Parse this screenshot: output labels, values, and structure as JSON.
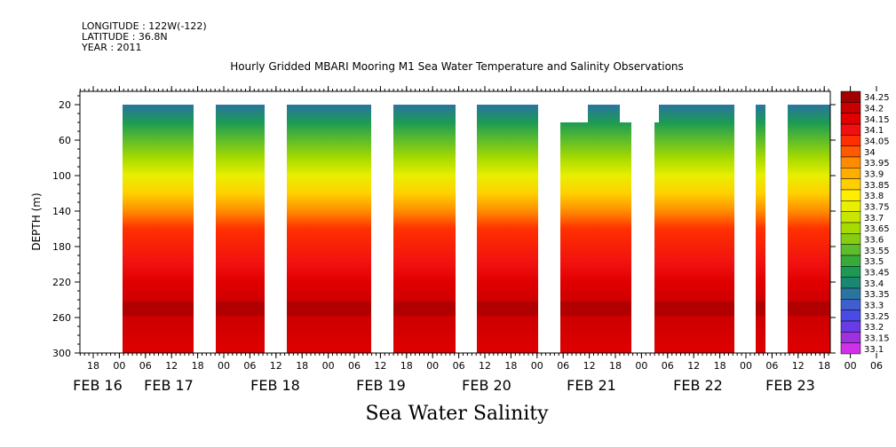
{
  "header": {
    "longitude": "LONGITUDE : 122W(-122)",
    "latitude": "LATITUDE : 36.8N",
    "year": "YEAR : 2011",
    "title": "Hourly Gridded MBARI Mooring M1 Sea Water Temperature and Salinity Observations"
  },
  "chart_data": {
    "type": "heatmap",
    "title": "Hourly Gridded MBARI Mooring M1 Sea Water Temperature and Salinity Observations",
    "xlabel": "Sea Water Salinity",
    "ylabel": "DEPTH (m)",
    "y_ticks": [
      20,
      60,
      100,
      140,
      180,
      220,
      260,
      300
    ],
    "ylim": [
      300,
      5
    ],
    "x_hour_ticks": [
      "18",
      "00",
      "06",
      "12",
      "18",
      "00",
      "06",
      "12",
      "18",
      "00",
      "06",
      "12",
      "18",
      "00",
      "06",
      "12",
      "18",
      "00",
      "06",
      "12",
      "18",
      "00",
      "06",
      "12",
      "18",
      "00",
      "06",
      "12",
      "18",
      "00",
      "06",
      "12"
    ],
    "x_date_labels": [
      "FEB 16",
      "FEB 17",
      "FEB 18",
      "FEB 19",
      "FEB 20",
      "FEB 21",
      "FEB 22",
      "FEB 23"
    ],
    "colorbar_levels": [
      "34.25",
      "34.2",
      "34.15",
      "34.1",
      "34.05",
      "34",
      "33.95",
      "33.9",
      "33.85",
      "33.8",
      "33.75",
      "33.7",
      "33.65",
      "33.6",
      "33.55",
      "33.5",
      "33.45",
      "33.4",
      "33.35",
      "33.3",
      "33.25",
      "33.2",
      "33.15",
      "33.1"
    ],
    "colorbar_colors": [
      "#a00000",
      "#c80000",
      "#e00000",
      "#f01010",
      "#ff3000",
      "#ff5a00",
      "#ff8c00",
      "#ffae00",
      "#ffd000",
      "#ffee00",
      "#e8ef00",
      "#c8e600",
      "#a6da00",
      "#86cc10",
      "#5ebd2a",
      "#36ab38",
      "#1c9a55",
      "#1a8870",
      "#2a74a0",
      "#3f5fd0",
      "#4a4ae6",
      "#6a3ae6",
      "#a030e0",
      "#d030e8"
    ],
    "depth_profile": [
      {
        "depth": 20,
        "salinity": 33.35
      },
      {
        "depth": 40,
        "salinity": 33.45
      },
      {
        "depth": 60,
        "salinity": 33.55
      },
      {
        "depth": 80,
        "salinity": 33.65
      },
      {
        "depth": 100,
        "salinity": 33.75
      },
      {
        "depth": 120,
        "salinity": 33.85
      },
      {
        "depth": 140,
        "salinity": 33.95
      },
      {
        "depth": 160,
        "salinity": 34.05
      },
      {
        "depth": 200,
        "salinity": 34.1
      },
      {
        "depth": 220,
        "salinity": 34.15
      },
      {
        "depth": 250,
        "salinity": 34.2
      },
      {
        "depth": 300,
        "salinity": 34.15
      }
    ]
  }
}
